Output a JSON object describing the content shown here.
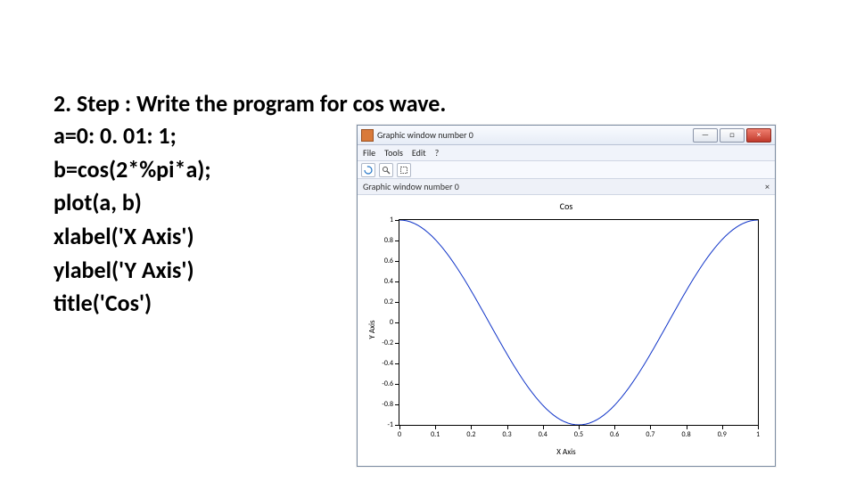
{
  "slide": {
    "heading": "2. Step : Write the program for cos wave.",
    "code": [
      "a=0: 0. 01: 1;",
      "b=cos(2*%pi*a);",
      "plot(a, b)",
      "xlabel('X Axis')",
      "ylabel('Y Axis')",
      "title('Cos')"
    ],
    "heading_fontsize": 26,
    "code_fontsize": 26,
    "font_weight": 700,
    "text_color": "#000000"
  },
  "window": {
    "title": "Graphic window number 0",
    "btn_min": "—",
    "btn_max": "□",
    "btn_close": "×",
    "menu": {
      "file": "File",
      "tools": "Tools",
      "edit": "Edit",
      "help": "?"
    },
    "tab_label": "Graphic window number 0",
    "tab_close": "×",
    "titlebar_gradient": [
      "#f9fbff",
      "#e6ecf6"
    ],
    "border_color": "#7a8aa0",
    "close_color": "#c0392b",
    "app_icon_color": "#d97a3a"
  },
  "chart": {
    "type": "line",
    "title": "Cos",
    "xlabel": "X Axis",
    "ylabel": "Y Axis",
    "xlim": [
      0,
      1
    ],
    "ylim": [
      -1,
      1
    ],
    "xtick_step": 0.1,
    "ytick_step": 0.2,
    "xticks": [
      0,
      0.1,
      0.2,
      0.3,
      0.4,
      0.5,
      0.6,
      0.7,
      0.8,
      0.9,
      1
    ],
    "xticklabels": [
      "0",
      "0.1",
      "0.2",
      "0.3",
      "0.4",
      "0.5",
      "0.6",
      "0.7",
      "0.8",
      "0.9",
      "1"
    ],
    "yticks": [
      -1,
      -0.8,
      -0.6,
      -0.4,
      -0.2,
      0,
      0.2,
      0.4,
      0.6,
      0.8,
      1
    ],
    "yticklabels": [
      "-1",
      "-0.8",
      "-0.6",
      "-0.4",
      "-0.2",
      "0",
      "0.2",
      "0.4",
      "0.6",
      "0.8",
      "1"
    ],
    "line_color": "#1034c8",
    "line_width": 1,
    "background_color": "#ffffff",
    "axis_color": "#000000",
    "title_fontsize": 10,
    "label_fontsize": 9,
    "tick_fontsize": 8,
    "series_formula": "cos(2*pi*x)",
    "series_x_step": 0.01
  }
}
